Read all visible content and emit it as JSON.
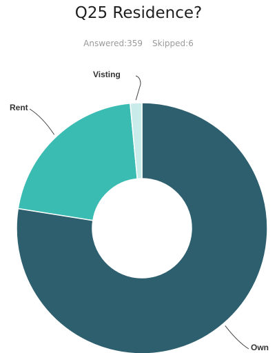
{
  "header": {
    "title": "Q25 Residence?",
    "answered_label": "Answered:359",
    "skipped_label": "Skipped:6"
  },
  "chart_data": {
    "type": "pie",
    "donut": true,
    "categories": [
      "Own",
      "Rent",
      "Visting"
    ],
    "values": [
      77.5,
      21.0,
      1.5
    ],
    "unit": "%",
    "colors": [
      "#2d5f6e",
      "#3bbcb2",
      "#c9ecea"
    ],
    "title": "Q25 Residence?",
    "legend": "none",
    "labels_on_slices": true
  }
}
